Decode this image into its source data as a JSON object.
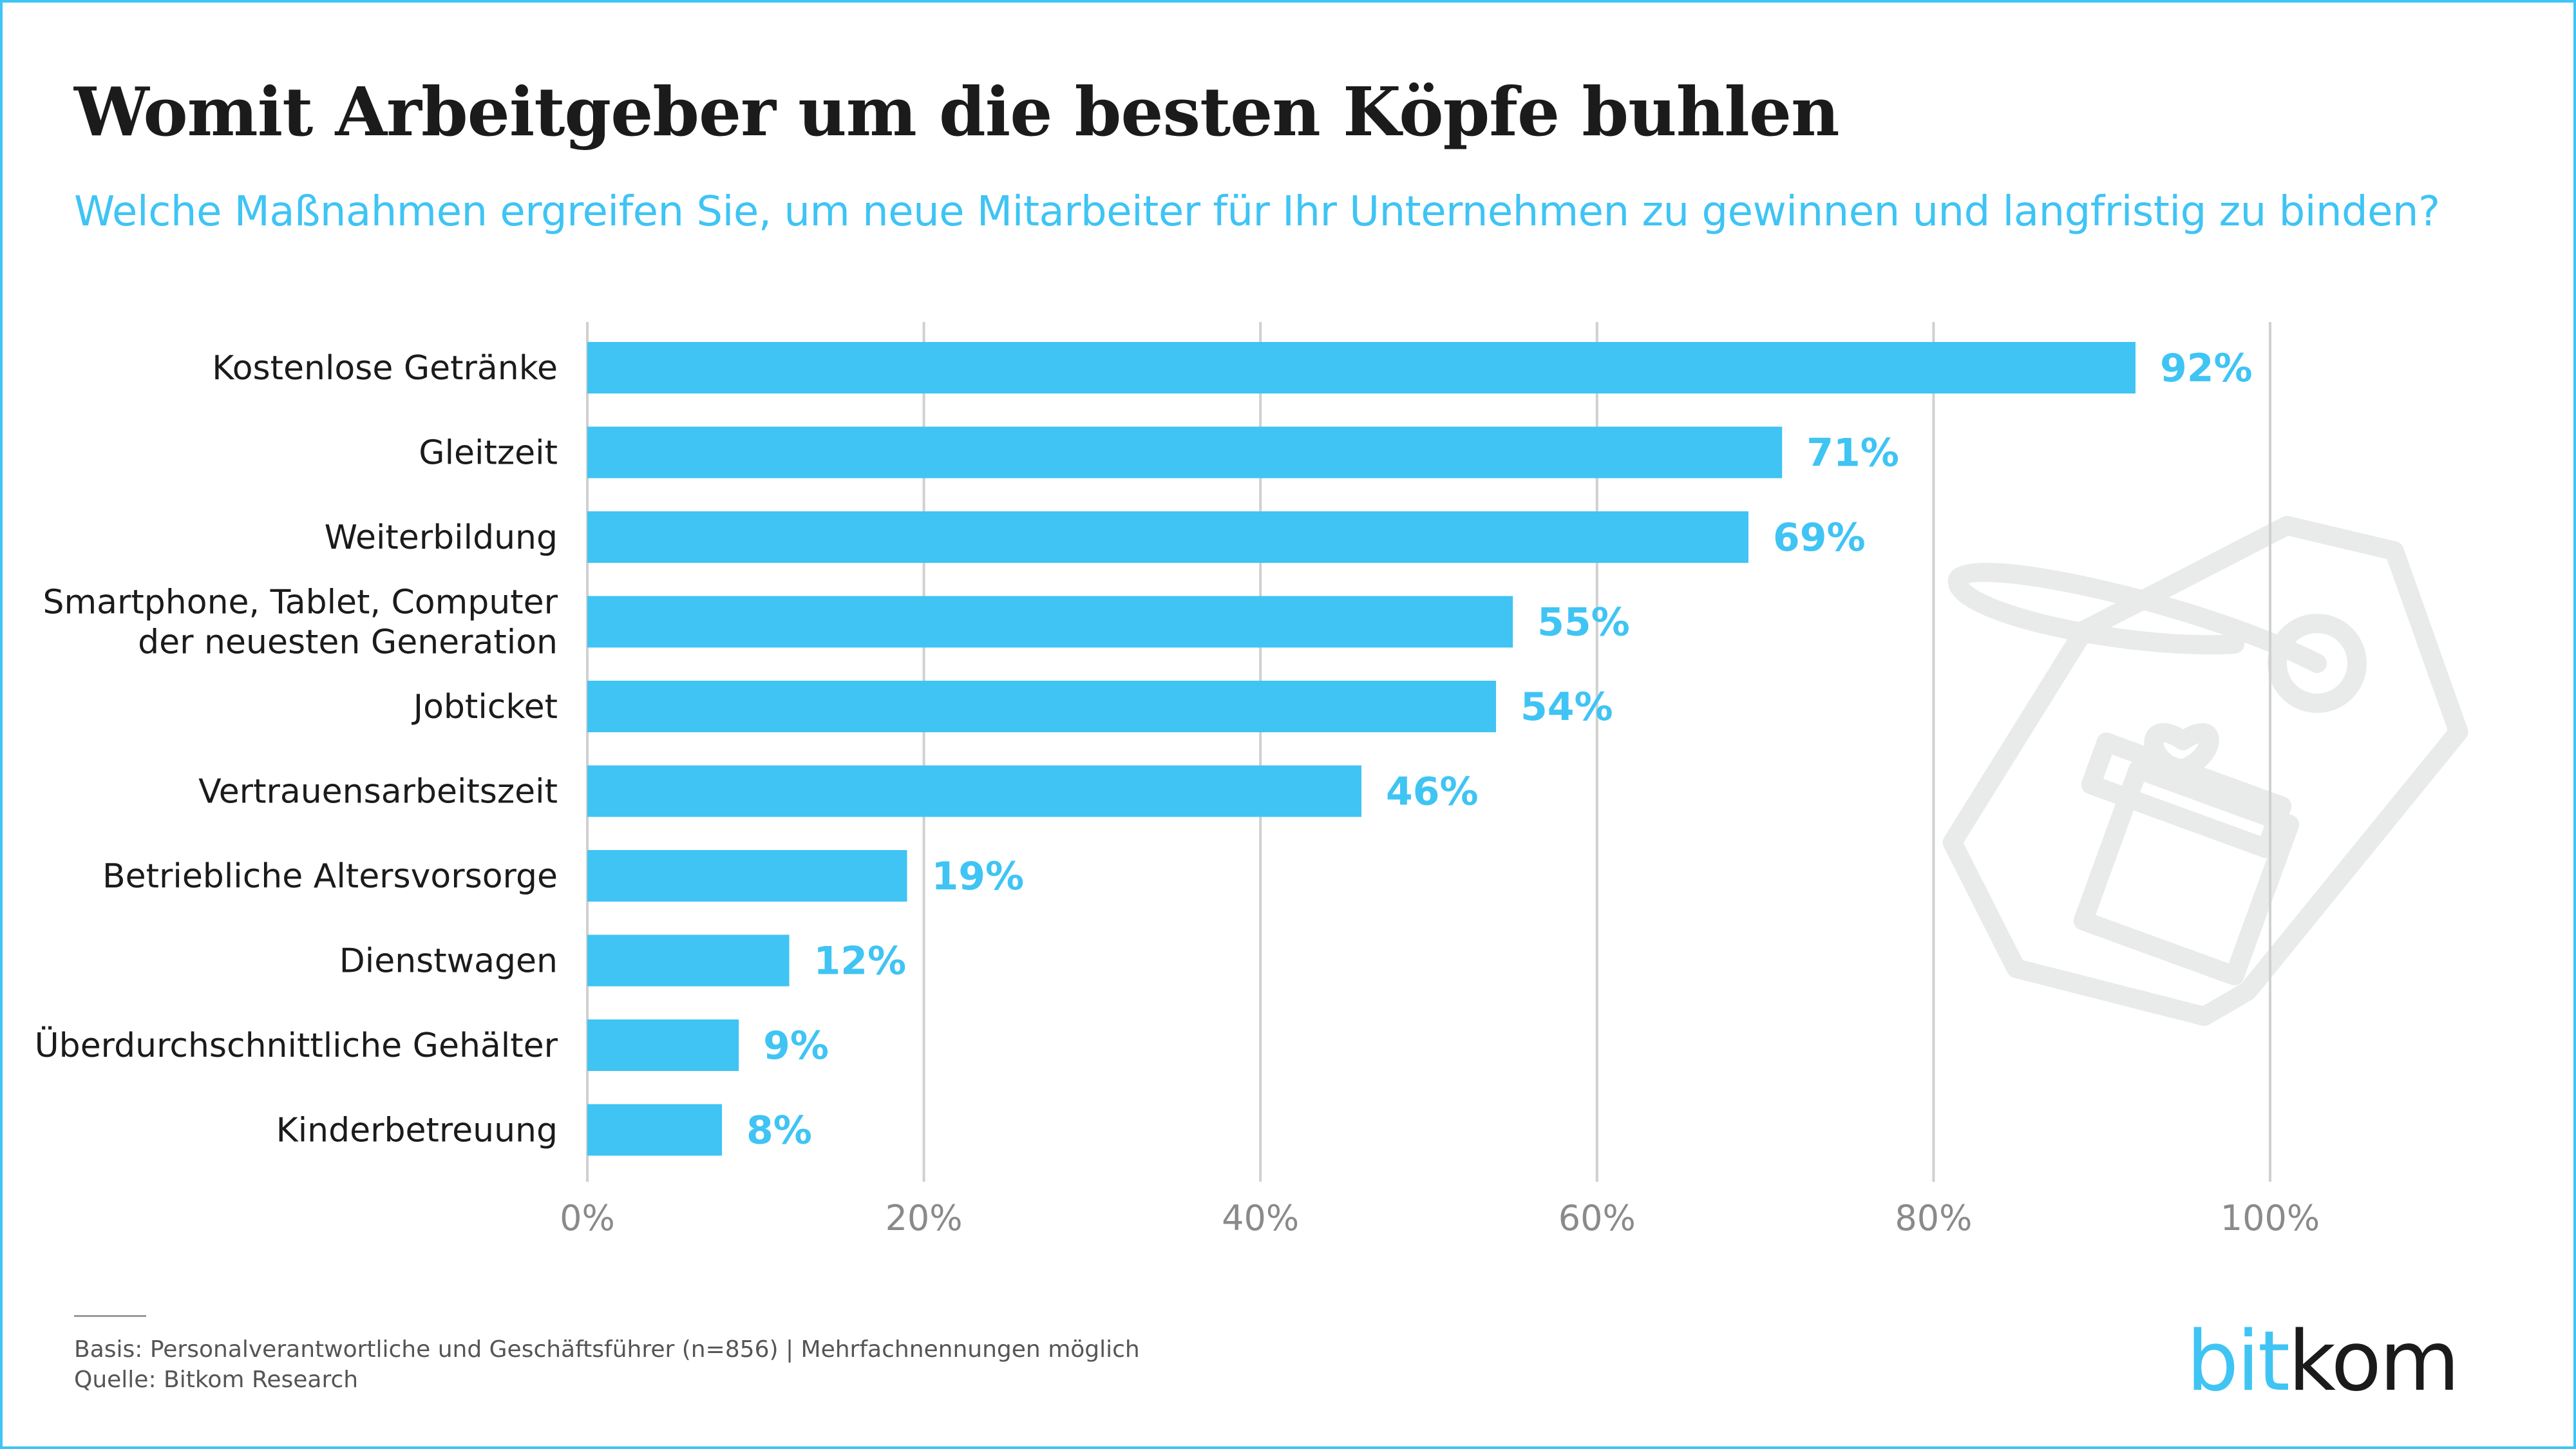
{
  "title": "Womit Arbeitgeber um die besten Köpfe buhlen",
  "subtitle": "Welche Maßnahmen ergreifen Sie, um neue Mitarbeiter für Ihr Unternehmen zu gewinnen und langfristig zu binden?",
  "footnote": {
    "basis": "Basis: Personalverantwortliche und Geschäftsführer (n=856) | Mehrfachnennungen möglich",
    "source": "Quelle: Bitkom Research"
  },
  "logo": {
    "part1": "bit",
    "part2": "kom"
  },
  "colors": {
    "bar": "#3fc4f4",
    "value_label": "#3fc4f4",
    "grid": "#d0d0d0",
    "tick": "#8a8a8a",
    "category": "#1b1b1b",
    "decoration": "#e8ebea"
  },
  "decoration_icon": "gift-tag-icon",
  "chart_data": {
    "type": "bar",
    "orientation": "horizontal",
    "categories": [
      [
        "Kostenlose Getränke"
      ],
      [
        "Gleitzeit"
      ],
      [
        "Weiterbildung"
      ],
      [
        "Smartphone, Tablet, Computer",
        "der neuesten Generation"
      ],
      [
        "Jobticket"
      ],
      [
        "Vertrauensarbeitszeit"
      ],
      [
        "Betriebliche Altersvorsorge"
      ],
      [
        "Dienstwagen"
      ],
      [
        "Überdurchschnittliche Gehälter"
      ],
      [
        "Kinderbetreuung"
      ]
    ],
    "values": [
      92,
      71,
      69,
      55,
      54,
      46,
      19,
      12,
      9,
      8
    ],
    "value_labels": [
      "92%",
      "71%",
      "69%",
      "55%",
      "54%",
      "46%",
      "19%",
      "12%",
      "9%",
      "8%"
    ],
    "xlim": [
      0,
      100
    ],
    "xticks": [
      0,
      20,
      40,
      60,
      80,
      100
    ],
    "xtick_labels": [
      "0%",
      "20%",
      "40%",
      "60%",
      "80%",
      "100%"
    ],
    "grid": true,
    "legend": "none"
  }
}
